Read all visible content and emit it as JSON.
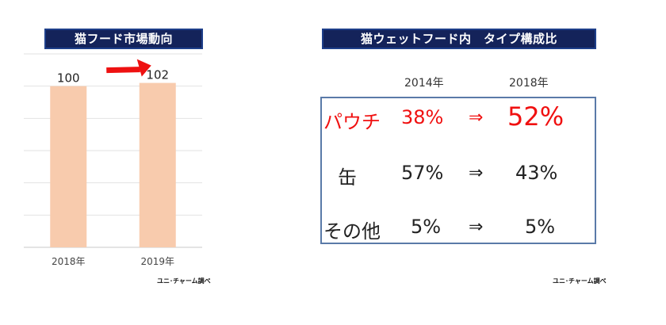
{
  "left_panel": {
    "title": "猫フード市場動向",
    "source": "ユニ･チャーム調べ"
  },
  "right_panel": {
    "title": "猫ウェットフード内　タイプ構成比",
    "source": "ユニ･チャーム調べ",
    "col_headers": [
      "2014年",
      "2018年"
    ],
    "arrow_symbol": "⇒",
    "rows": [
      {
        "label": "パウチ",
        "from": "38%",
        "to": "52%",
        "highlight": true
      },
      {
        "label": "缶",
        "from": "57%",
        "to": "43%",
        "highlight": false
      },
      {
        "label": "その他",
        "from": "5%",
        "to": "5%",
        "highlight": false
      }
    ]
  },
  "chart_data": [
    {
      "type": "bar",
      "title": "猫フード市場動向",
      "categories": [
        "2018年",
        "2019年"
      ],
      "values": [
        100,
        102
      ],
      "data_labels": [
        "100",
        "102"
      ],
      "ylim": [
        0,
        120
      ],
      "grid": true,
      "bar_color": "#f8cbad",
      "annotation": "increase arrow (red) from 2018年 to 2019年"
    },
    {
      "type": "table",
      "title": "猫ウェットフード内　タイプ構成比",
      "columns": [
        "2014年",
        "2018年"
      ],
      "rows": [
        {
          "name": "パウチ",
          "values": [
            38,
            52
          ]
        },
        {
          "name": "缶",
          "values": [
            57,
            43
          ]
        },
        {
          "name": "その他",
          "values": [
            5,
            5
          ]
        }
      ],
      "unit": "%",
      "highlight_color": "#f01010"
    }
  ]
}
